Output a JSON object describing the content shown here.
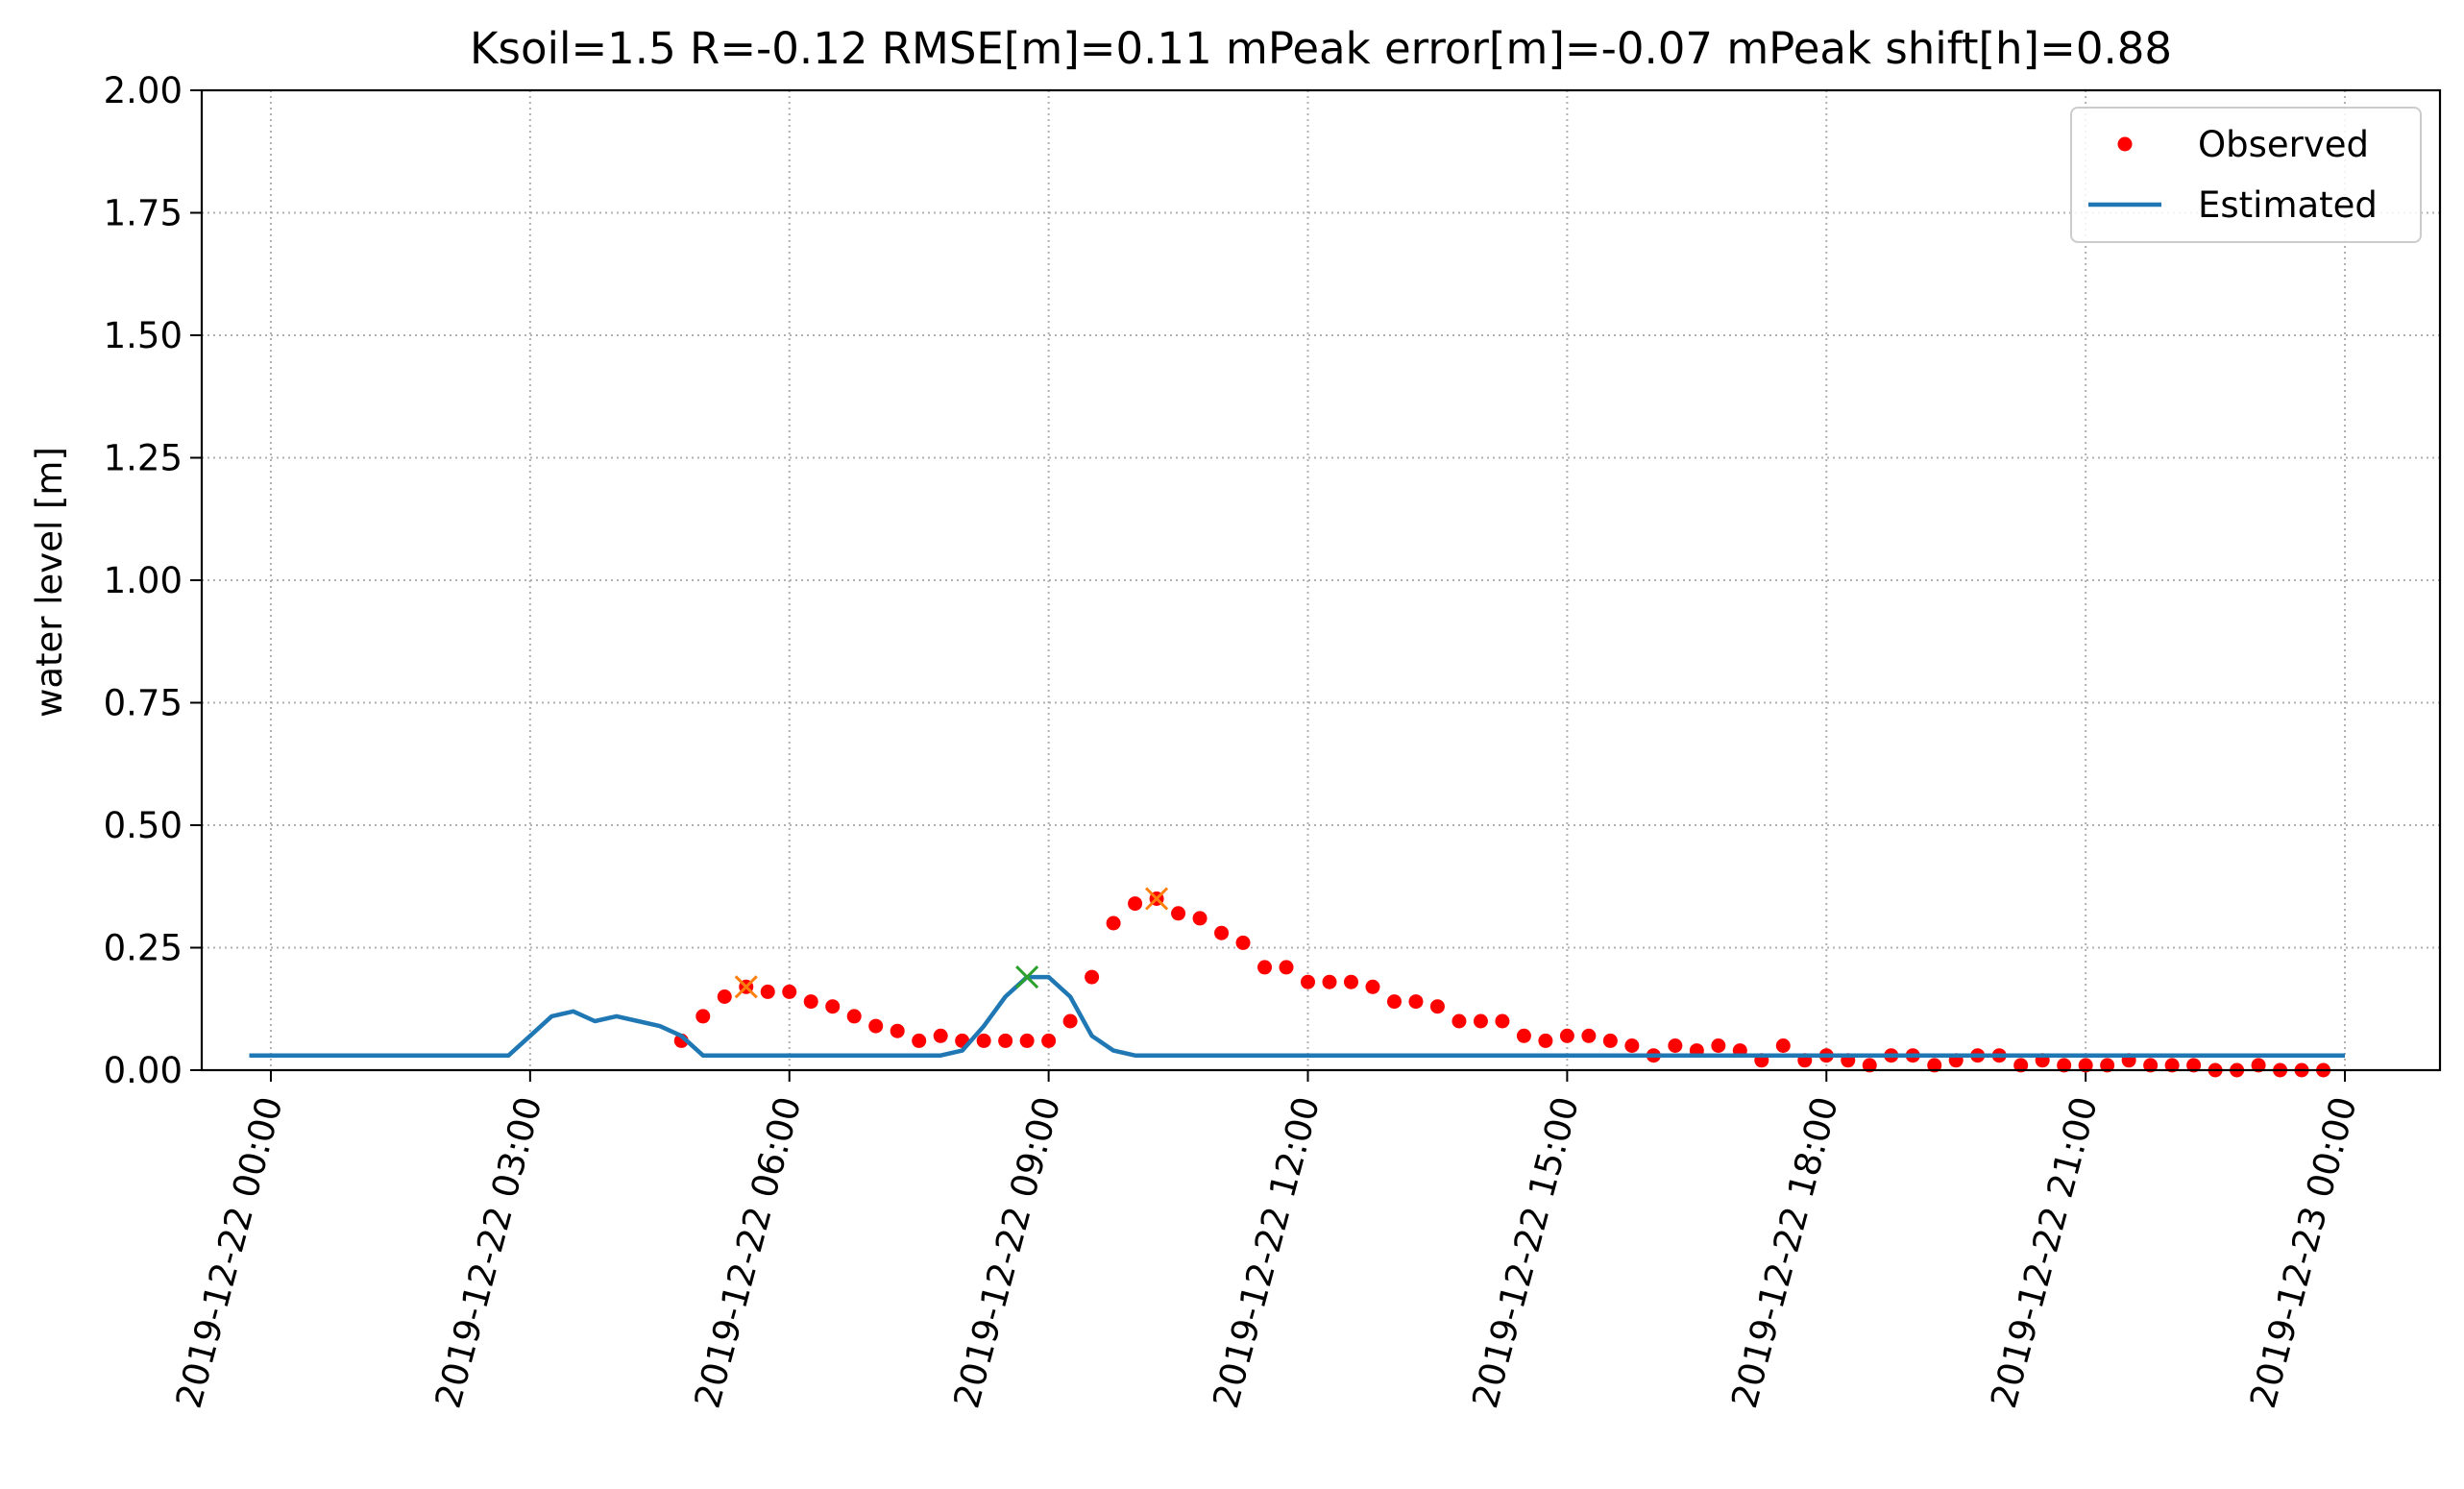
{
  "chart_data": {
    "type": "line",
    "title": "Ksoil=1.5   R=-0.12   RMSE[m]=0.11   mPeak error[m]=-0.07  mPeak shift[h]=0.88",
    "xlabel": "",
    "ylabel": "water level [m]",
    "x_unit": "hours after 2019-12-22 00:00",
    "xlim": [
      -0.8,
      25.1
    ],
    "ylim": [
      0,
      2.0
    ],
    "grid": true,
    "legend_position": "top-right",
    "x_ticks": [
      {
        "value": 0,
        "label": "2019-12-22 00:00"
      },
      {
        "value": 3,
        "label": "2019-12-22 03:00"
      },
      {
        "value": 6,
        "label": "2019-12-22 06:00"
      },
      {
        "value": 9,
        "label": "2019-12-22 09:00"
      },
      {
        "value": 12,
        "label": "2019-12-22 12:00"
      },
      {
        "value": 15,
        "label": "2019-12-22 15:00"
      },
      {
        "value": 18,
        "label": "2019-12-22 18:00"
      },
      {
        "value": 21,
        "label": "2019-12-22 21:00"
      },
      {
        "value": 24,
        "label": "2019-12-23 00:00"
      }
    ],
    "y_ticks": [
      {
        "value": 0,
        "label": "0.00"
      },
      {
        "value": 0.25,
        "label": "0.25"
      },
      {
        "value": 0.5,
        "label": "0.50"
      },
      {
        "value": 0.75,
        "label": "0.75"
      },
      {
        "value": 1.0,
        "label": "1.00"
      },
      {
        "value": 1.25,
        "label": "1.25"
      },
      {
        "value": 1.5,
        "label": "1.50"
      },
      {
        "value": 1.75,
        "label": "1.75"
      },
      {
        "value": 2.0,
        "label": "2.00"
      }
    ],
    "series": [
      {
        "name": "Observed",
        "style": "points",
        "color": "#ff0000",
        "x": [
          4.75,
          5.0,
          5.25,
          5.5,
          5.75,
          6.0,
          6.25,
          6.5,
          6.75,
          7.0,
          7.25,
          7.5,
          7.75,
          8.0,
          8.25,
          8.5,
          8.75,
          9.0,
          9.25,
          9.5,
          9.75,
          10.0,
          10.25,
          10.5,
          10.75,
          11.0,
          11.25,
          11.5,
          11.75,
          12.0,
          12.25,
          12.5,
          12.75,
          13.0,
          13.25,
          13.5,
          13.75,
          14.0,
          14.25,
          14.5,
          14.75,
          15.0,
          15.25,
          15.5,
          15.75,
          16.0,
          16.25,
          16.5,
          16.75,
          17.0,
          17.25,
          17.5,
          17.75,
          18.0,
          18.25,
          18.5,
          18.75,
          19.0,
          19.25,
          19.5,
          19.75,
          20.0,
          20.25,
          20.5,
          20.75,
          21.0,
          21.25,
          21.5,
          21.75,
          22.0,
          22.25,
          22.5,
          22.75,
          23.0,
          23.25,
          23.5,
          23.75
        ],
        "values": [
          0.06,
          0.11,
          0.15,
          0.17,
          0.16,
          0.16,
          0.14,
          0.13,
          0.11,
          0.09,
          0.08,
          0.06,
          0.07,
          0.06,
          0.06,
          0.06,
          0.06,
          0.06,
          0.1,
          0.19,
          0.3,
          0.34,
          0.35,
          0.32,
          0.31,
          0.28,
          0.26,
          0.21,
          0.21,
          0.18,
          0.18,
          0.18,
          0.17,
          0.14,
          0.14,
          0.13,
          0.1,
          0.1,
          0.1,
          0.07,
          0.06,
          0.07,
          0.07,
          0.06,
          0.05,
          0.03,
          0.05,
          0.04,
          0.05,
          0.04,
          0.02,
          0.05,
          0.02,
          0.03,
          0.02,
          0.01,
          0.03,
          0.03,
          0.01,
          0.02,
          0.03,
          0.03,
          0.01,
          0.02,
          0.01,
          0.01,
          0.01,
          0.02,
          0.01,
          0.01,
          0.01,
          0.0,
          0.0,
          0.01,
          0.0,
          0.0,
          0.0
        ]
      },
      {
        "name": "Estimated",
        "style": "line",
        "color": "#1f77b4",
        "x": [
          -0.25,
          2.75,
          3.0,
          3.25,
          3.5,
          3.75,
          4.0,
          4.25,
          4.5,
          4.75,
          5.0,
          7.25,
          7.5,
          7.75,
          8.0,
          8.25,
          8.5,
          8.75,
          9.0,
          9.25,
          9.5,
          9.75,
          10.0,
          24.0
        ],
        "values": [
          0.03,
          0.03,
          0.07,
          0.11,
          0.12,
          0.1,
          0.11,
          0.1,
          0.09,
          0.07,
          0.03,
          0.03,
          0.03,
          0.03,
          0.04,
          0.09,
          0.15,
          0.19,
          0.19,
          0.15,
          0.07,
          0.04,
          0.03,
          0.03
        ]
      }
    ],
    "annotations": [
      {
        "marker": "x",
        "color": "#ff7f0e",
        "x": 5.5,
        "y": 0.17
      },
      {
        "marker": "x",
        "color": "#ff7f0e",
        "x": 10.25,
        "y": 0.35
      },
      {
        "marker": "x",
        "color": "#2ca02c",
        "x": 8.75,
        "y": 0.19
      }
    ]
  }
}
